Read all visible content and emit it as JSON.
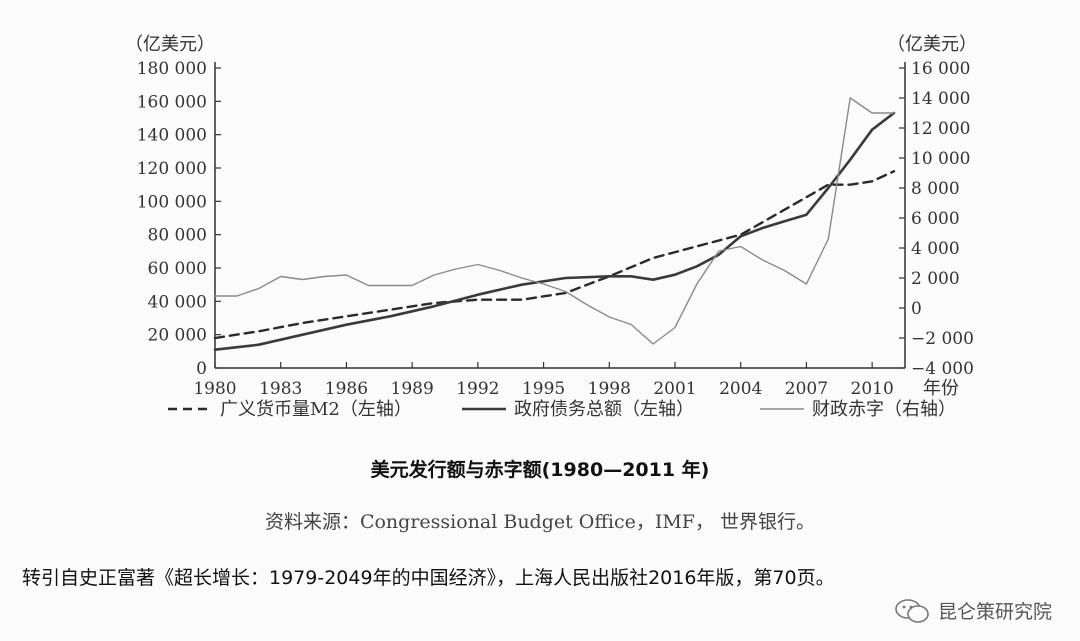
{
  "chart_data": {
    "type": "line",
    "title": "美元发行额与赤字额(1980—2011 年)",
    "left_unit": "（亿美元）",
    "right_unit": "（亿美元）",
    "x_label": "年份",
    "xlim": [
      1980,
      2011.5
    ],
    "x_ticks": [
      1980,
      1983,
      1986,
      1989,
      1992,
      1995,
      1998,
      2001,
      2004,
      2007,
      2010
    ],
    "ylim_left": [
      0,
      180000
    ],
    "ylim_right": [
      -4000,
      16000
    ],
    "y_ticks_left": [
      "0",
      "20 000",
      "40 000",
      "60 000",
      "80 000",
      "100 000",
      "120 000",
      "140 000",
      "160 000",
      "180 000"
    ],
    "y_ticks_right": [
      "−4 000",
      "−2 000",
      "0",
      "2 000",
      "4 000",
      "6 000",
      "8 000",
      "10 000",
      "12 000",
      "14 000",
      "16 000"
    ],
    "y_tick_values_left": [
      0,
      20000,
      40000,
      60000,
      80000,
      100000,
      120000,
      140000,
      160000,
      180000
    ],
    "y_tick_values_right": [
      -4000,
      -2000,
      0,
      2000,
      4000,
      6000,
      8000,
      10000,
      12000,
      14000,
      16000
    ],
    "legend_position": "bottom",
    "series": [
      {
        "name": "广义货币量M2（左轴）",
        "axis": "left",
        "style": "dashed",
        "x": [
          1980,
          1982,
          1984,
          1986,
          1988,
          1990,
          1992,
          1994,
          1996,
          1998,
          2000,
          2002,
          2004,
          2006,
          2008,
          2009,
          2010,
          2011
        ],
        "y": [
          18000,
          22000,
          27000,
          31000,
          35000,
          39000,
          41000,
          41000,
          45000,
          55000,
          66000,
          73000,
          80000,
          95000,
          110000,
          110000,
          112000,
          118000
        ]
      },
      {
        "name": "政府债务总额（左轴）",
        "axis": "left",
        "style": "solid-thick",
        "x": [
          1980,
          1982,
          1984,
          1986,
          1988,
          1990,
          1992,
          1994,
          1996,
          1998,
          1999,
          2000,
          2001,
          2002,
          2003,
          2004,
          2005,
          2006,
          2007,
          2008,
          2009,
          2010,
          2011
        ],
        "y": [
          11000,
          14000,
          20000,
          26000,
          31000,
          37000,
          44000,
          50000,
          54000,
          55000,
          55000,
          53000,
          56000,
          61000,
          68000,
          79000,
          84000,
          88000,
          92000,
          108000,
          125000,
          143000,
          153000
        ]
      },
      {
        "name": "财政赤字（右轴）",
        "axis": "right",
        "style": "solid-thin",
        "x": [
          1980,
          1981,
          1982,
          1983,
          1984,
          1985,
          1986,
          1987,
          1988,
          1989,
          1990,
          1991,
          1992,
          1993,
          1994,
          1995,
          1996,
          1997,
          1998,
          1999,
          2000,
          2001,
          2002,
          2003,
          2004,
          2005,
          2006,
          2007,
          2008,
          2009,
          2010,
          2011
        ],
        "y": [
          800,
          800,
          1300,
          2100,
          1900,
          2100,
          2200,
          1500,
          1500,
          1500,
          2200,
          2600,
          2900,
          2500,
          2000,
          1600,
          1100,
          200,
          -600,
          -1100,
          -2400,
          -1300,
          1600,
          3800,
          4100,
          3200,
          2500,
          1600,
          4600,
          14000,
          13000,
          13000
        ]
      }
    ]
  },
  "source_text": "资料来源：Congressional Budget Office，IMF， 世界银行。",
  "citation_text": "转引自史正富著《超长增长：1979-2049年的中国经济》，上海人民出版社2016年版，第70页。",
  "brand_text": "昆仑策研究院",
  "colors": {
    "dashed_series": "#2a2a2a",
    "thick_series": "#3a3a3a",
    "thin_series": "#8a8a8a",
    "axis": "#333333"
  }
}
